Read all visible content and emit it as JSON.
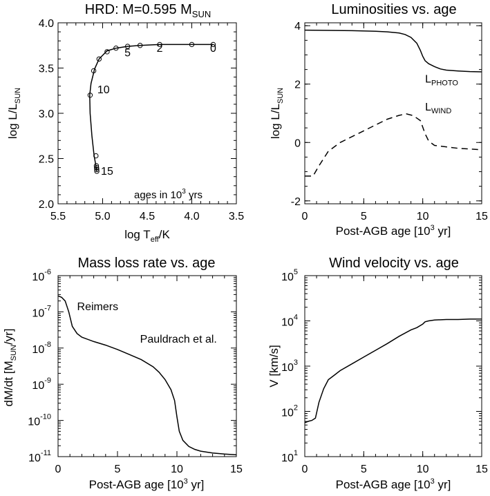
{
  "chart_data": [
    {
      "id": "hrd",
      "type": "line",
      "title": "HRD: M=0.595 M",
      "title_sub": "SUN",
      "xlabel": "log T",
      "xlabel_sub": "eff",
      "xlabel_suffix": "/K",
      "ylabel": "log L/L",
      "ylabel_sub": "SUN",
      "xlim": [
        5.5,
        3.5
      ],
      "ylim": [
        2.0,
        4.0
      ],
      "xticks": [
        "5.5",
        "5.0",
        "4.5",
        "4.0",
        "3.5"
      ],
      "xtick_values": [
        5.5,
        5.0,
        4.5,
        4.0,
        3.5
      ],
      "yticks": [
        "2.0",
        "2.5",
        "3.0",
        "3.5",
        "4.0"
      ],
      "ytick_values": [
        2.0,
        2.5,
        3.0,
        3.5,
        4.0
      ],
      "series": [
        {
          "style": "solid",
          "x": [
            3.76,
            4.0,
            4.36,
            4.58,
            4.72,
            4.85,
            4.95,
            5.04,
            5.09,
            5.13,
            5.145,
            5.14,
            5.12,
            5.095,
            5.075,
            5.07,
            5.065
          ],
          "y": [
            3.76,
            3.76,
            3.76,
            3.75,
            3.74,
            3.72,
            3.69,
            3.6,
            3.49,
            3.33,
            3.2,
            3.0,
            2.75,
            2.53,
            2.42,
            2.38,
            2.36
          ]
        }
      ],
      "markers": {
        "x": [
          3.76,
          4.0,
          4.36,
          4.58,
          4.72,
          4.85,
          4.95,
          5.04,
          5.1,
          5.14,
          5.075,
          5.07,
          5.068,
          5.066,
          5.065
        ],
        "y": [
          3.76,
          3.76,
          3.76,
          3.75,
          3.74,
          3.72,
          3.68,
          3.6,
          3.47,
          3.2,
          2.53,
          2.42,
          2.4,
          2.38,
          2.36
        ]
      },
      "annotations": [
        {
          "text": "0",
          "x": 3.76,
          "y": 3.68
        },
        {
          "text": "2",
          "x": 4.36,
          "y": 3.68
        },
        {
          "text": "5",
          "x": 4.72,
          "y": 3.63
        },
        {
          "text": "10",
          "x": 4.99,
          "y": 3.22
        },
        {
          "text": "15",
          "x": 4.95,
          "y": 2.32
        }
      ],
      "note": "ages in 10",
      "note_sup": "3",
      "note_suffix": " yrs"
    },
    {
      "id": "lum",
      "type": "line",
      "title": "Luminosities vs. age",
      "xlabel": "Post-AGB age [10",
      "xlabel_sup": "3",
      "xlabel_suffix": " yr]",
      "ylabel": "log L/L",
      "ylabel_sub": "SUN",
      "xlim": [
        0,
        15
      ],
      "ylim": [
        -2.1,
        4.1
      ],
      "xticks": [
        "0",
        "5",
        "10",
        "15"
      ],
      "xtick_values": [
        0,
        5,
        10,
        15
      ],
      "yticks": [
        "-2",
        "0",
        "2",
        "4"
      ],
      "ytick_values": [
        -2,
        0,
        2,
        4
      ],
      "series": [
        {
          "name": "L",
          "name_sub": "PHOTO",
          "style": "solid",
          "x": [
            0,
            2,
            4,
            6,
            7,
            8,
            8.5,
            9,
            9.5,
            9.8,
            10,
            10.2,
            10.5,
            11,
            11.5,
            12,
            13,
            14,
            15
          ],
          "y": [
            3.85,
            3.84,
            3.83,
            3.81,
            3.79,
            3.75,
            3.7,
            3.6,
            3.4,
            3.15,
            2.95,
            2.8,
            2.7,
            2.6,
            2.52,
            2.48,
            2.45,
            2.43,
            2.42
          ]
        },
        {
          "name": "L",
          "name_sub": "WIND",
          "style": "dashed",
          "x": [
            0,
            0.7,
            1.2,
            2,
            3,
            4,
            5,
            6,
            7,
            8,
            8.6,
            9.2,
            9.8,
            10.2,
            10.5,
            11,
            12,
            13,
            15
          ],
          "y": [
            -1.15,
            -1.15,
            -0.8,
            -0.3,
            0.0,
            0.2,
            0.4,
            0.6,
            0.8,
            0.93,
            0.98,
            0.92,
            0.75,
            0.3,
            0.05,
            -0.1,
            -0.15,
            -0.2,
            -0.25
          ]
        }
      ],
      "labels": [
        {
          "series": 0,
          "x": 10.2,
          "y": 2.05
        },
        {
          "series": 1,
          "x": 10.2,
          "y": 1.1
        }
      ]
    },
    {
      "id": "mdot",
      "type": "line",
      "title": "Mass loss rate vs. age",
      "xlabel": "Post-AGB age [10",
      "xlabel_sup": "3",
      "xlabel_suffix": " yr]",
      "ylabel": "dM/dt [M",
      "ylabel_sub": "SUN",
      "ylabel_suffix": "/yr]",
      "scale_y": "log",
      "xlim": [
        0,
        15
      ],
      "ylim_exp": [
        -11,
        -6
      ],
      "xticks": [
        "0",
        "5",
        "10",
        "15"
      ],
      "xtick_values": [
        0,
        5,
        10,
        15
      ],
      "ytick_base": "10",
      "yticks_exp": [
        "-11",
        "-10",
        "-9",
        "-8",
        "-7",
        "-6"
      ],
      "ytick_values_exp": [
        -11,
        -10,
        -9,
        -8,
        -7,
        -6
      ],
      "series": [
        {
          "style": "solid",
          "x": [
            0,
            0.3,
            0.6,
            0.9,
            1.2,
            1.6,
            2,
            3,
            4,
            5,
            6,
            7,
            8,
            8.5,
            9,
            9.5,
            9.8,
            10,
            10.2,
            10.5,
            11,
            11.5,
            12,
            13,
            14,
            15
          ],
          "y": [
            -6.56,
            -6.6,
            -6.7,
            -7.0,
            -7.4,
            -7.6,
            -7.7,
            -7.82,
            -7.92,
            -8.04,
            -8.18,
            -8.32,
            -8.52,
            -8.67,
            -8.87,
            -9.15,
            -9.45,
            -9.9,
            -10.3,
            -10.55,
            -10.72,
            -10.8,
            -10.85,
            -10.9,
            -10.93,
            -10.95
          ]
        }
      ],
      "annotations": [
        {
          "text": "Reimers",
          "x": 1.6,
          "y": -6.95
        },
        {
          "text": "Pauldrach et al.",
          "x": 6.9,
          "y": -7.85
        }
      ]
    },
    {
      "id": "vinf",
      "type": "line",
      "title": "Wind velocity vs. age",
      "xlabel": "Post-AGB age [10",
      "xlabel_sup": "3",
      "xlabel_suffix": " yr]",
      "ylabel": "V [km/s]",
      "scale_y": "log",
      "xlim": [
        0,
        15
      ],
      "ylim_exp": [
        1,
        5
      ],
      "xticks": [
        "0",
        "5",
        "10",
        "15"
      ],
      "xtick_values": [
        0,
        5,
        10,
        15
      ],
      "ytick_base": "10",
      "yticks_exp": [
        "1",
        "2",
        "3",
        "4",
        "5"
      ],
      "ytick_values_exp": [
        1,
        2,
        3,
        4,
        5
      ],
      "series": [
        {
          "style": "solid",
          "x": [
            0,
            0.3,
            0.6,
            0.9,
            1.2,
            1.6,
            2,
            2.5,
            3,
            4,
            5,
            6,
            7,
            8,
            9,
            9.5,
            10,
            10.2,
            10.5,
            11,
            12,
            13,
            14,
            15
          ],
          "y": [
            1.75,
            1.78,
            1.8,
            1.85,
            2.2,
            2.5,
            2.7,
            2.8,
            2.9,
            3.05,
            3.2,
            3.35,
            3.5,
            3.66,
            3.8,
            3.85,
            3.93,
            3.98,
            4.0,
            4.02,
            4.03,
            4.03,
            4.04,
            4.04
          ]
        }
      ]
    }
  ]
}
